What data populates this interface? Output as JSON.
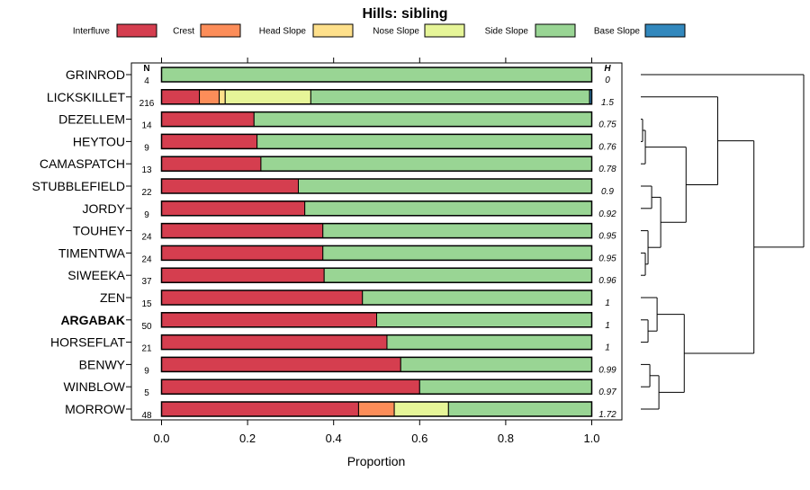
{
  "chart_data": {
    "type": "bar",
    "orientation": "horizontal",
    "stacked": true,
    "title": "Hills: sibling",
    "xlabel": "Proportion",
    "ylabel": "",
    "xlim": [
      0,
      1
    ],
    "xticks": [
      "0.0",
      "0.2",
      "0.4",
      "0.6",
      "0.8",
      "1.0"
    ],
    "n_header": "N",
    "h_header": "H",
    "legend_position": "top",
    "legend": [
      {
        "name": "Interfluve",
        "color": "#d53e4f"
      },
      {
        "name": "Crest",
        "color": "#fc8d59"
      },
      {
        "name": "Head Slope",
        "color": "#fee08b"
      },
      {
        "name": "Nose Slope",
        "color": "#e6f598"
      },
      {
        "name": "Side Slope",
        "color": "#99d594"
      },
      {
        "name": "Base Slope",
        "color": "#3288bd"
      }
    ],
    "highlighted_category": "ARGABAK",
    "categories": [
      "GRINROD",
      "LICKSKILLET",
      "DEZELLEM",
      "HEYTOU",
      "CAMASPATCH",
      "STUBBLEFIELD",
      "JORDY",
      "TOUHEY",
      "TIMENTWA",
      "SIWEEKA",
      "ZEN",
      "ARGABAK",
      "HORSEFLAT",
      "BENWY",
      "WINBLOW",
      "MORROW"
    ],
    "n": [
      "4",
      "216",
      "14",
      "9",
      "13",
      "22",
      "9",
      "24",
      "24",
      "37",
      "15",
      "50",
      "21",
      "9",
      "5",
      "48"
    ],
    "h": [
      "0",
      "1.5",
      "0.75",
      "0.76",
      "0.78",
      "0.9",
      "0.92",
      "0.95",
      "0.95",
      "0.96",
      "1",
      "1",
      "1",
      "0.99",
      "0.97",
      "1.72"
    ],
    "series": [
      {
        "name": "Interfluve",
        "values": [
          0,
          0.088,
          0.215,
          0.222,
          0.231,
          0.318,
          0.333,
          0.375,
          0.375,
          0.378,
          0.467,
          0.5,
          0.524,
          0.556,
          0.6,
          0.458
        ]
      },
      {
        "name": "Crest",
        "values": [
          0,
          0.046,
          0,
          0,
          0,
          0,
          0,
          0,
          0,
          0,
          0,
          0,
          0,
          0,
          0,
          0.083
        ]
      },
      {
        "name": "Head Slope",
        "values": [
          0,
          0.014,
          0,
          0,
          0,
          0,
          0,
          0,
          0,
          0,
          0,
          0,
          0,
          0,
          0,
          0
        ]
      },
      {
        "name": "Nose Slope",
        "values": [
          0,
          0.199,
          0,
          0,
          0,
          0,
          0,
          0,
          0,
          0,
          0,
          0,
          0,
          0,
          0,
          0.126
        ]
      },
      {
        "name": "Side Slope",
        "values": [
          1,
          0.648,
          0.785,
          0.778,
          0.769,
          0.682,
          0.667,
          0.625,
          0.625,
          0.622,
          0.533,
          0.5,
          0.476,
          0.444,
          0.4,
          0.333
        ]
      },
      {
        "name": "Base Slope",
        "values": [
          0,
          0.005,
          0,
          0,
          0,
          0,
          0,
          0,
          0,
          0,
          0,
          0,
          0,
          0,
          0,
          0
        ]
      }
    ],
    "dendrogram": {
      "leaf_order": [
        "GRINROD",
        "LICKSKILLET",
        "DEZELLEM",
        "HEYTOU",
        "CAMASPATCH",
        "STUBBLEFIELD",
        "JORDY",
        "TOUHEY",
        "TIMENTWA",
        "SIWEEKA",
        "ZEN",
        "ARGABAK",
        "HORSEFLAT",
        "BENWY",
        "WINBLOW",
        "MORROW"
      ],
      "merges": [
        [
          2,
          3,
          0.02
        ],
        [
          -1,
          4,
          0.05
        ],
        [
          5,
          6,
          0.12
        ],
        [
          8,
          9,
          0.05
        ],
        [
          7,
          -4,
          0.08
        ],
        [
          -3,
          -5,
          0.22
        ],
        [
          -2,
          -6,
          0.5
        ],
        [
          11,
          12,
          0.08
        ],
        [
          10,
          -8,
          0.18
        ],
        [
          13,
          14,
          0.1
        ],
        [
          -10,
          15,
          0.2
        ],
        [
          -9,
          -11,
          0.48
        ],
        [
          1,
          -7,
          0.85
        ],
        [
          -12,
          -13,
          1.25
        ],
        [
          0,
          -14,
          1.8
        ]
      ]
    }
  }
}
